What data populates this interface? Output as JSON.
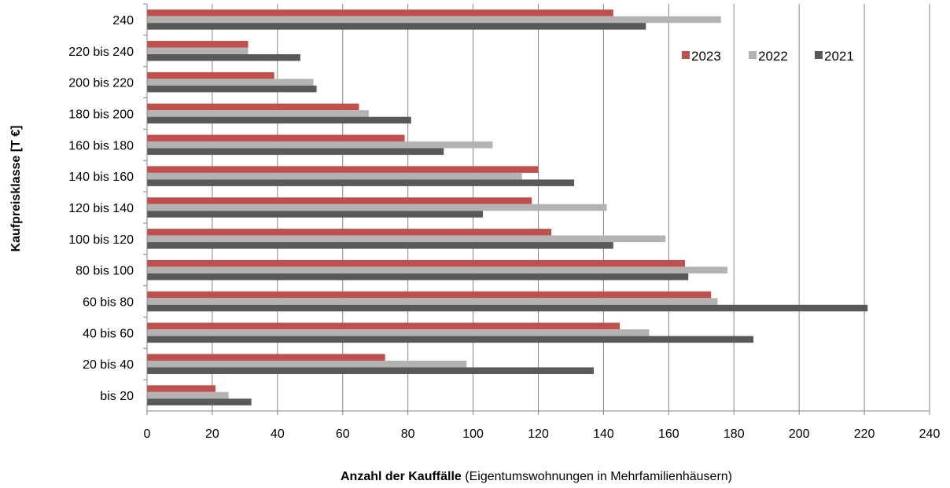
{
  "chart_data": {
    "type": "bar",
    "orientation": "horizontal",
    "categories": [
      "240",
      "220 bis 240",
      "200 bis 220",
      "180 bis 200",
      "160 bis 180",
      "140 bis 160",
      "120 bis 140",
      "100 bis 120",
      "80 bis 100",
      "60 bis 80",
      "40 bis 60",
      "20 bis 40",
      "bis 20"
    ],
    "series": [
      {
        "name": "2023",
        "color": "#c0504d",
        "values": [
          143,
          31,
          39,
          65,
          79,
          120,
          118,
          124,
          165,
          173,
          145,
          73,
          21
        ]
      },
      {
        "name": "2022",
        "color": "#b3b3b3",
        "values": [
          176,
          31,
          51,
          68,
          106,
          115,
          141,
          159,
          178,
          175,
          154,
          98,
          25
        ]
      },
      {
        "name": "2021",
        "color": "#595959",
        "values": [
          153,
          47,
          52,
          81,
          91,
          131,
          103,
          143,
          166,
          221,
          186,
          137,
          32
        ]
      }
    ],
    "xlim": [
      0,
      240
    ],
    "xticks": [
      0,
      20,
      40,
      60,
      80,
      100,
      120,
      140,
      160,
      180,
      200,
      220,
      240
    ],
    "xlabel_bold": "Anzahl der Kauffälle",
    "xlabel_rest": " (Eigentumswohnungen in Mehrfamilienhäusern)",
    "ylabel": "Kaufpreisklasse  [T €]",
    "grid": "vertical",
    "legend_position": "top-right"
  }
}
